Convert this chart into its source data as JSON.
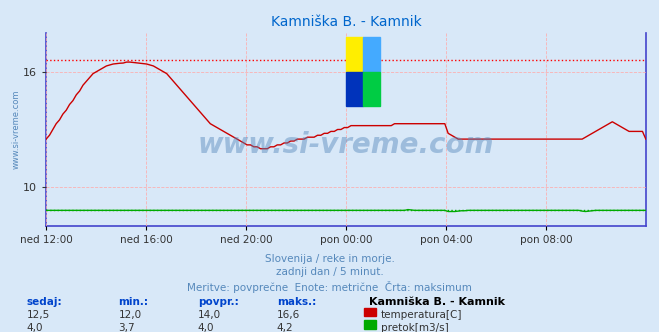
{
  "title": "Kamniška B. - Kamnik",
  "background_color": "#d8e8f8",
  "plot_bg_color": "#d8e8f8",
  "grid_color": "#ffaaaa",
  "x_labels": [
    "ned 12:00",
    "ned 16:00",
    "ned 20:00",
    "pon 00:00",
    "pon 04:00",
    "pon 08:00"
  ],
  "x_ticks": [
    0,
    48,
    96,
    144,
    192,
    240
  ],
  "x_max": 288,
  "y_min": 8.0,
  "y_max": 18.0,
  "y_ticks": [
    10,
    16
  ],
  "temp_color": "#cc0000",
  "flow_color": "#00aa00",
  "flow_color2": "#0000cc",
  "max_line_color": "#ff0000",
  "subtitle1": "Slovenija / reke in morje.",
  "subtitle2": "zadnji dan / 5 minut.",
  "subtitle3": "Meritve: povprečne  Enote: metrične  Črta: maksimum",
  "subtitle_color": "#5588bb",
  "table_headers": [
    "sedaj:",
    "min.:",
    "povpr.:",
    "maks.:"
  ],
  "temp_row": [
    "12,5",
    "12,0",
    "14,0",
    "16,6"
  ],
  "flow_row": [
    "4,0",
    "3,7",
    "4,0",
    "4,2"
  ],
  "legend_station": "Kamniška B. - Kamnik",
  "legend_temp": "temperatura[C]",
  "legend_flow": "pretok[m3/s]",
  "temp_max": 16.6,
  "flow_max_line": 4.2,
  "flow_baseline": 4.0,
  "ylabel_text": "www.si-vreme.com",
  "watermark_text": "www.si-vreme.com",
  "watermark_color": "#5588bb",
  "temp_data": [
    12.5,
    12.7,
    13.0,
    13.3,
    13.5,
    13.8,
    14.0,
    14.3,
    14.5,
    14.8,
    15.0,
    15.3,
    15.5,
    15.7,
    15.9,
    16.0,
    16.1,
    16.2,
    16.3,
    16.35,
    16.4,
    16.42,
    16.44,
    16.45,
    16.5,
    16.5,
    16.48,
    16.46,
    16.44,
    16.42,
    16.4,
    16.35,
    16.3,
    16.2,
    16.1,
    16.0,
    15.9,
    15.7,
    15.5,
    15.3,
    15.1,
    14.9,
    14.7,
    14.5,
    14.3,
    14.1,
    13.9,
    13.7,
    13.5,
    13.3,
    13.2,
    13.1,
    13.0,
    12.9,
    12.8,
    12.7,
    12.6,
    12.5,
    12.4,
    12.3,
    12.2,
    12.2,
    12.1,
    12.1,
    12.0,
    12.0,
    12.0,
    12.1,
    12.1,
    12.2,
    12.2,
    12.3,
    12.3,
    12.4,
    12.4,
    12.5,
    12.5,
    12.5,
    12.6,
    12.6,
    12.6,
    12.7,
    12.7,
    12.8,
    12.8,
    12.9,
    12.9,
    13.0,
    13.0,
    13.1,
    13.1,
    13.2,
    13.2,
    13.2,
    13.2,
    13.2,
    13.2,
    13.2,
    13.2,
    13.2,
    13.2,
    13.2,
    13.2,
    13.2,
    13.3,
    13.3,
    13.3,
    13.3,
    13.3,
    13.3,
    13.3,
    13.3,
    13.3,
    13.3,
    13.3,
    13.3,
    13.3,
    13.3,
    13.3,
    13.3,
    12.8,
    12.7,
    12.6,
    12.5,
    12.5,
    12.5,
    12.5,
    12.5,
    12.5,
    12.5,
    12.5,
    12.5,
    12.5,
    12.5,
    12.5,
    12.5,
    12.5,
    12.5,
    12.5,
    12.5,
    12.5,
    12.5,
    12.5,
    12.5,
    12.5,
    12.5,
    12.5,
    12.5,
    12.5,
    12.5,
    12.5,
    12.5,
    12.5,
    12.5,
    12.5,
    12.5,
    12.5,
    12.5,
    12.5,
    12.5,
    12.5,
    12.6,
    12.7,
    12.8,
    12.9,
    13.0,
    13.1,
    13.2,
    13.3,
    13.4,
    13.3,
    13.2,
    13.1,
    13.0,
    12.9,
    12.9,
    12.9,
    12.9,
    12.9,
    12.5
  ],
  "flow_data": [
    4.0,
    4.0,
    4.0,
    4.0,
    4.0,
    4.0,
    4.0,
    4.0,
    4.0,
    4.0,
    4.0,
    4.0,
    4.0,
    4.0,
    4.0,
    4.0,
    4.0,
    4.0,
    4.0,
    4.0,
    4.0,
    4.0,
    4.0,
    4.0,
    4.0,
    4.0,
    4.0,
    4.0,
    4.0,
    4.0,
    4.0,
    4.0,
    4.0,
    4.0,
    4.0,
    4.0,
    4.0,
    4.0,
    4.0,
    4.0,
    4.0,
    4.0,
    4.0,
    4.0,
    4.0,
    4.0,
    4.0,
    4.0,
    4.0,
    4.0,
    4.0,
    4.0,
    4.0,
    4.0,
    4.0,
    4.0,
    4.0,
    4.0,
    4.0,
    4.0,
    4.0,
    4.0,
    4.0,
    4.0,
    4.0,
    4.0,
    4.0,
    4.0,
    4.0,
    4.0,
    4.0,
    4.0,
    4.0,
    4.0,
    4.0,
    4.0,
    4.0,
    4.0,
    4.0,
    4.0,
    4.0,
    4.0,
    4.0,
    4.0,
    4.0,
    4.0,
    4.0,
    4.0,
    4.0,
    4.0,
    4.0,
    4.0,
    4.0,
    4.0,
    4.0,
    4.0,
    4.0,
    4.0,
    4.0,
    4.0,
    4.0,
    4.0,
    4.0,
    4.0,
    4.0,
    4.0,
    4.0,
    4.0,
    4.2,
    4.1,
    4.0,
    4.0,
    4.0,
    4.0,
    4.0,
    4.0,
    4.0,
    4.0,
    4.0,
    4.0,
    3.7,
    3.7,
    3.7,
    3.8,
    3.9,
    3.9,
    4.0,
    4.0,
    4.0,
    4.0,
    4.0,
    4.0,
    4.0,
    4.0,
    4.0,
    4.0,
    4.0,
    4.0,
    4.0,
    4.0,
    4.0,
    4.0,
    4.0,
    4.0,
    4.0,
    4.0,
    4.0,
    4.0,
    4.0,
    4.0,
    4.0,
    4.0,
    4.0,
    4.0,
    4.0,
    4.0,
    4.0,
    4.0,
    4.0,
    4.0,
    3.8,
    3.7,
    3.8,
    3.9,
    4.0,
    4.0,
    4.0,
    4.0,
    4.0,
    4.0,
    4.0,
    4.0,
    4.0,
    4.0,
    4.0,
    4.0,
    4.0,
    4.0,
    4.0,
    4.0
  ]
}
